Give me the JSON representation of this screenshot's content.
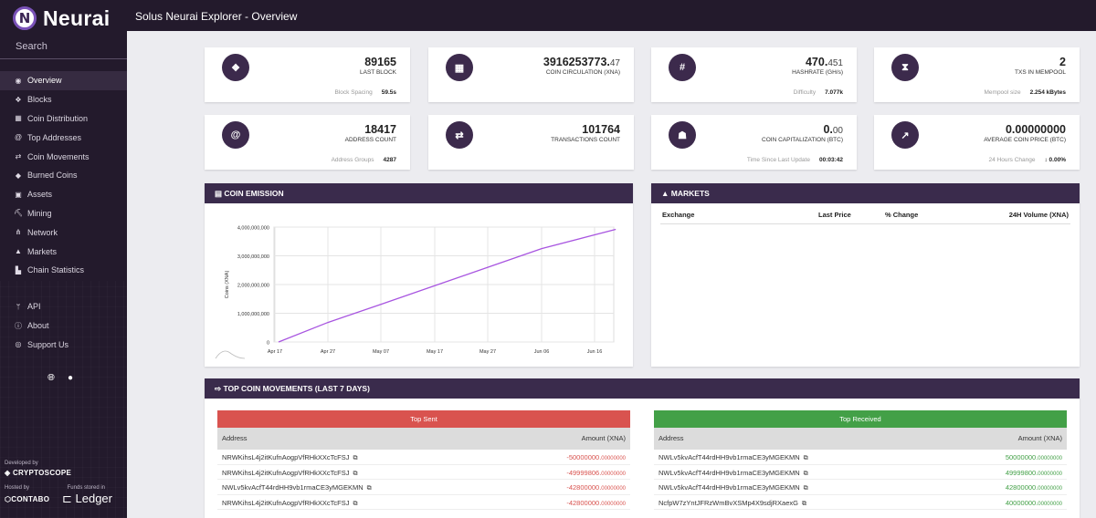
{
  "brand": {
    "initial": "N",
    "name": "Neurai"
  },
  "header": {
    "title": "Solus Neurai Explorer - Overview"
  },
  "search": {
    "placeholder": "Search"
  },
  "nav": [
    {
      "label": "Overview",
      "icon": "tachometer-icon",
      "glyph": "◉",
      "active": true
    },
    {
      "label": "Blocks",
      "icon": "cubes-icon",
      "glyph": "❖"
    },
    {
      "label": "Coin Distribution",
      "icon": "coins-icon",
      "glyph": "▦"
    },
    {
      "label": "Top Addresses",
      "icon": "at-icon",
      "glyph": "@"
    },
    {
      "label": "Coin Movements",
      "icon": "exchange-icon",
      "glyph": "⇄"
    },
    {
      "label": "Burned Coins",
      "icon": "fire-icon",
      "glyph": "◆"
    },
    {
      "label": "Assets",
      "icon": "gift-icon",
      "glyph": "▣"
    },
    {
      "label": "Mining",
      "icon": "pickaxe-icon",
      "glyph": "⛏"
    },
    {
      "label": "Network",
      "icon": "network-icon",
      "glyph": "⋔"
    },
    {
      "label": "Markets",
      "icon": "line-chart-icon",
      "glyph": "▲"
    },
    {
      "label": "Chain Statistics",
      "icon": "area-chart-icon",
      "glyph": "▙"
    }
  ],
  "nav2": [
    {
      "label": "API",
      "icon": "code-branch-icon",
      "glyph": "ᛘ"
    },
    {
      "label": "About",
      "icon": "info-icon",
      "glyph": "ⓘ"
    },
    {
      "label": "Support Us",
      "icon": "donate-icon",
      "glyph": "◎"
    }
  ],
  "credits": {
    "developed_by": "Developed by",
    "developer": "CRYPTOSCOPE",
    "hosted_by": "Hosted by",
    "host": "CONTABO",
    "funds_stored": "Funds stored in",
    "wallet": "Ledger"
  },
  "stats": [
    {
      "icon": "cubes-icon",
      "glyph": "❖",
      "value": "89165",
      "decimals": "",
      "label": "LAST BLOCK",
      "foot_label": "Block Spacing",
      "foot_value": "59.5s"
    },
    {
      "icon": "coins-icon",
      "glyph": "▦",
      "value": "3916253773.",
      "decimals": "47",
      "label": "COIN CIRCULATION (XNA)",
      "foot_label": "",
      "foot_value": ""
    },
    {
      "icon": "hashtag-icon",
      "glyph": "#",
      "value": "470.",
      "decimals": "451",
      "label": "HASHRATE (GH/s)",
      "foot_label": "Difficulty",
      "foot_value": "7.077k"
    },
    {
      "icon": "hourglass-icon",
      "glyph": "⧗",
      "value": "2",
      "decimals": "",
      "label": "TXS IN MEMPOOL",
      "foot_label": "Mempool size",
      "foot_value": "2.254 kBytes"
    },
    {
      "icon": "at-icon",
      "glyph": "@",
      "value": "18417",
      "decimals": "",
      "label": "ADDRESS COUNT",
      "foot_label": "Address Groups",
      "foot_value": "4287"
    },
    {
      "icon": "exchange-icon",
      "glyph": "⇄",
      "value": "101764",
      "decimals": "",
      "label": "TRANSACTIONS COUNT",
      "foot_label": "",
      "foot_value": ""
    },
    {
      "icon": "money-bag-icon",
      "glyph": "☗",
      "value": "0.",
      "decimals": "00",
      "label": "COIN CAPITALIZATION (BTC)",
      "foot_label": "Time Since Last Update",
      "foot_value": "00:03:42"
    },
    {
      "icon": "chart-icon",
      "glyph": "↗",
      "value": "0.00000000",
      "decimals": "",
      "label": "AVERAGE COIN PRICE (BTC)",
      "foot_label": "24 Hours Change",
      "foot_value": "↕ 0.00%"
    }
  ],
  "emission": {
    "title": "COIN EMISSION"
  },
  "markets": {
    "title": "MARKETS",
    "columns": [
      "Exchange",
      "Last Price",
      "% Change",
      "24H Volume (XNA)"
    ]
  },
  "chart_data": {
    "type": "line",
    "title": "",
    "xlabel": "",
    "ylabel": "Coins (XNA)",
    "x_ticks": [
      "Apr 17",
      "Apr 27",
      "May 07",
      "May 17",
      "May 27",
      "Jun 06",
      "Jun 16"
    ],
    "y_ticks": [
      "0",
      "1,000,000,000",
      "2,000,000,000",
      "3,000,000,000",
      "4,000,000,000"
    ],
    "ylim": [
      0,
      4000000000
    ],
    "grid": true,
    "series": [
      {
        "x": [
          "Apr 17",
          "Apr 27",
          "May 07",
          "May 17",
          "May 27",
          "Jun 06",
          "Jun 16",
          "Jun 20"
        ],
        "y": [
          0,
          680000000,
          1310000000,
          1960000000,
          2600000000,
          3250000000,
          3730000000,
          3920000000
        ]
      }
    ]
  },
  "movements": {
    "title": "TOP COIN MOVEMENTS (LAST 7 DAYS)",
    "sent": {
      "title": "Top Sent",
      "col_address": "Address",
      "col_amount": "Amount (XNA)",
      "rows": [
        {
          "address": "NRWKihsL4j2itKufnAogpVfRHkXXcTcFSJ",
          "amount": "-50000000.",
          "dec": "00000000"
        },
        {
          "address": "NRWKihsL4j2itKufnAogpVfRHkXXcTcFSJ",
          "amount": "-49999806.",
          "dec": "00000000"
        },
        {
          "address": "NWLv5kvAcfT44rdHH9vb1rmaCE3yMGEKMN",
          "amount": "-42800000.",
          "dec": "00000000"
        },
        {
          "address": "NRWKihsL4j2itKufnAogpVfRHkXXcTcFSJ",
          "amount": "-42800000.",
          "dec": "00000000"
        }
      ]
    },
    "received": {
      "title": "Top Received",
      "col_address": "Address",
      "col_amount": "Amount (XNA)",
      "rows": [
        {
          "address": "NWLv5kvAcfT44rdHH9vb1rmaCE3yMGEKMN",
          "amount": "50000000.",
          "dec": "00000000"
        },
        {
          "address": "NWLv5kvAcfT44rdHH9vb1rmaCE3yMGEKMN",
          "amount": "49999800.",
          "dec": "00000000"
        },
        {
          "address": "NWLv5kvAcfT44rdHH9vb1rmaCE3yMGEKMN",
          "amount": "42800000.",
          "dec": "00000000"
        },
        {
          "address": "NcfpW7zYntJFRzWmBvXSMp4X9sdjRXaexG",
          "amount": "40000000.",
          "dec": "00000000"
        }
      ]
    }
  },
  "colors": {
    "sidebar": "#231a2c",
    "panel_header": "#3a2b4c",
    "sent": "#d9534f",
    "received": "#43a047",
    "line": "#a855e0"
  }
}
